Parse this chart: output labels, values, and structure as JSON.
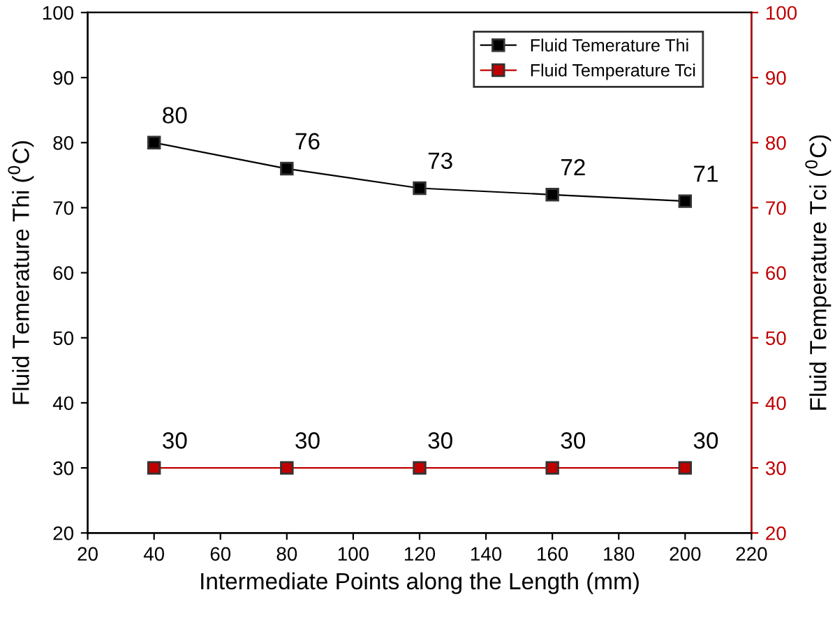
{
  "chart_data": {
    "type": "line",
    "xlabel": "Intermediate Points along the Length (mm)",
    "ylabel": "Fluid Temerature Thi ($^{0}$C)",
    "y2label": "Fluid Temperature Tci ($^{0}$C)",
    "x": [
      40,
      80,
      120,
      160,
      200
    ],
    "series": [
      {
        "name": "Fluid Temerature Thi",
        "color": "#000000",
        "values": [
          80,
          76,
          73,
          72,
          71
        ]
      },
      {
        "name": "Fluid Temperature Tci",
        "color": "#c00000",
        "values": [
          30,
          30,
          30,
          30,
          30
        ],
        "axis": "y2"
      }
    ],
    "xlim": [
      20,
      220
    ],
    "xticks": [
      20,
      40,
      60,
      80,
      100,
      120,
      140,
      160,
      180,
      200,
      220
    ],
    "ylim": [
      20,
      100
    ],
    "yticks": [
      20,
      30,
      40,
      50,
      60,
      70,
      80,
      90,
      100
    ],
    "y2lim": [
      20,
      100
    ],
    "y2ticks": [
      20,
      30,
      40,
      50,
      60,
      70,
      80,
      90,
      100
    ],
    "data_labels": true,
    "legend": "top right",
    "marker": "square",
    "line_style": "solid",
    "grid": false
  }
}
